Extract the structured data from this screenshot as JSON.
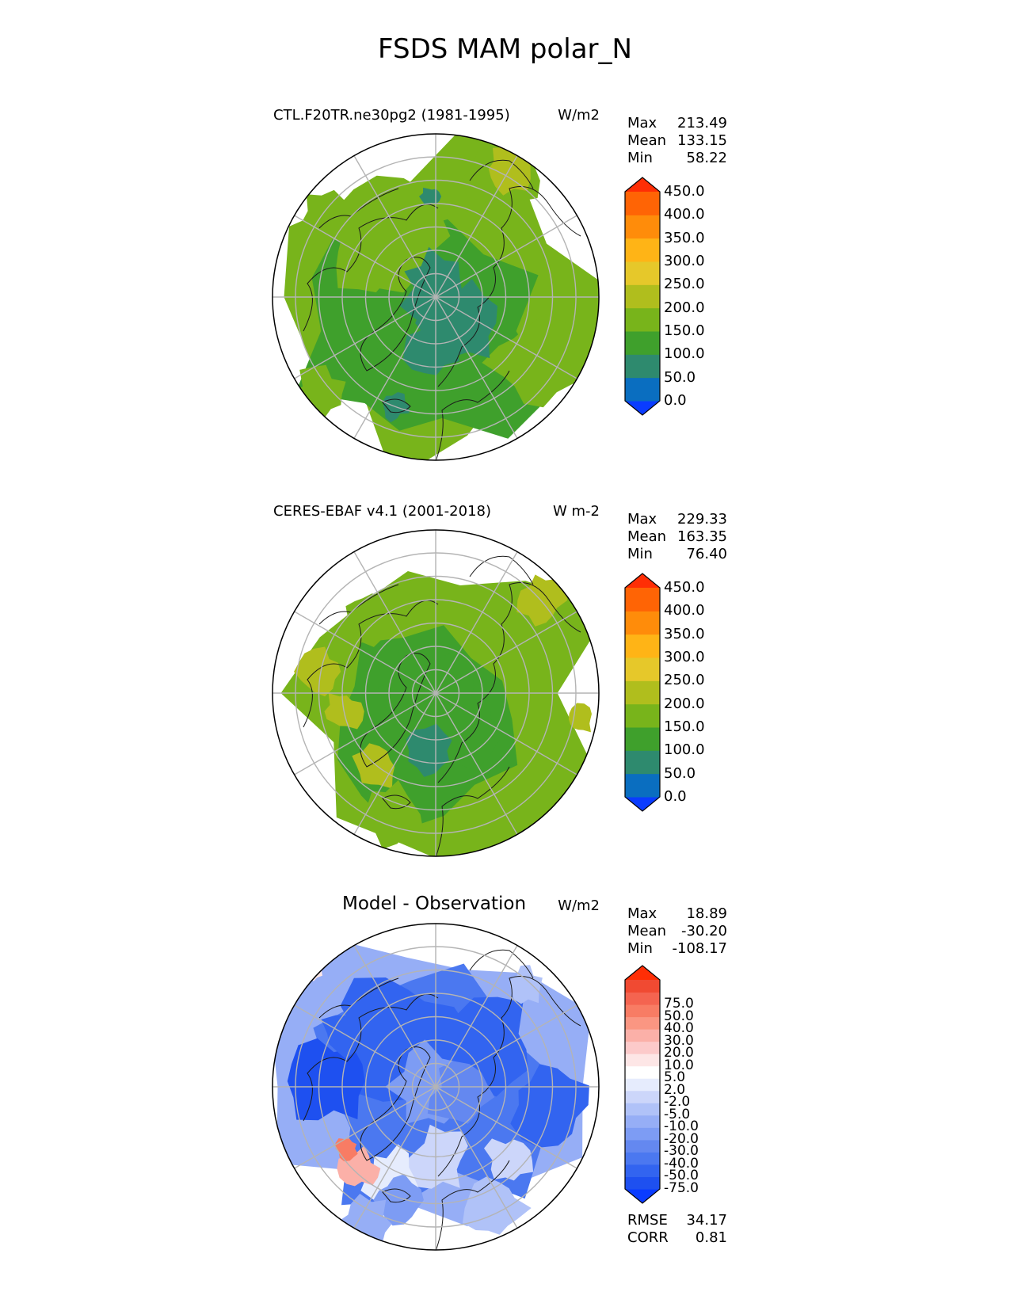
{
  "title": "FSDS MAM polar_N",
  "colors": {
    "seq": [
      "#0a3cff",
      "#0a6ec0",
      "#2e8a6e",
      "#3fa02c",
      "#78b41b",
      "#b0be1d",
      "#e6c82a",
      "#ffb416",
      "#ff8c0a",
      "#ff6405",
      "#ff2e05"
    ],
    "diff": [
      "#0a3cff",
      "#1e50f0",
      "#3264f0",
      "#4b78f0",
      "#6488f0",
      "#7d9cf4",
      "#96aef6",
      "#b0c2f8",
      "#ccd6fa",
      "#e6ecfd",
      "#ffffff",
      "#fde6e6",
      "#fccaca",
      "#fbb0a8",
      "#fa9682",
      "#f87c64",
      "#f46450",
      "#f04a32",
      "#ff2e05"
    ],
    "land_line": "#1a1a1a",
    "grid_line": "#b4b4b4"
  },
  "panels": [
    {
      "id": "model",
      "title": "CTL.F20TR.ne30pg2 (1981-1995)",
      "units": "W/m2",
      "stats": [
        {
          "label": "Max",
          "value": "213.49"
        },
        {
          "label": "Mean",
          "value": "133.15"
        },
        {
          "label": "Min",
          "value": "58.22"
        }
      ],
      "colorbar": {
        "ticks": [
          "450.0",
          "400.0",
          "350.0",
          "300.0",
          "250.0",
          "200.0",
          "150.0",
          "100.0",
          "50.0",
          "0.0"
        ]
      }
    },
    {
      "id": "obs",
      "title": "CERES-EBAF v4.1 (2001-2018)",
      "units": "W m-2",
      "stats": [
        {
          "label": "Max",
          "value": "229.33"
        },
        {
          "label": "Mean",
          "value": "163.35"
        },
        {
          "label": "Min",
          "value": "76.40"
        }
      ],
      "colorbar": {
        "ticks": [
          "450.0",
          "400.0",
          "350.0",
          "300.0",
          "250.0",
          "200.0",
          "150.0",
          "100.0",
          "50.0",
          "0.0"
        ]
      }
    },
    {
      "id": "diff",
      "title": "Model - Observation",
      "units": "W/m2",
      "stats": [
        {
          "label": "Max",
          "value": "18.89"
        },
        {
          "label": "Mean",
          "value": "-30.20"
        },
        {
          "label": "Min",
          "value": "-108.17"
        }
      ],
      "colorbar": {
        "ticks": [
          "75.0",
          "50.0",
          "40.0",
          "30.0",
          "20.0",
          "10.0",
          "5.0",
          "2.0",
          "-2.0",
          "-5.0",
          "-10.0",
          "-20.0",
          "-30.0",
          "-40.0",
          "-50.0",
          "-75.0"
        ]
      },
      "metrics": [
        {
          "label": "RMSE",
          "value": "34.17"
        },
        {
          "label": "CORR",
          "value": "0.81"
        }
      ]
    }
  ],
  "chart_data": [
    {
      "type": "heatmap",
      "projection": "north polar stereographic",
      "title": "CTL.F20TR.ne30pg2 (1981-1995)",
      "units": "W/m2",
      "stats": {
        "max": 213.49,
        "mean": 133.15,
        "min": 58.22
      },
      "levels": [
        0,
        50,
        100,
        150,
        200,
        250,
        300,
        350,
        400,
        450
      ],
      "colorbar_extend": "both"
    },
    {
      "type": "heatmap",
      "projection": "north polar stereographic",
      "title": "CERES-EBAF v4.1 (2001-2018)",
      "units": "W m-2",
      "stats": {
        "max": 229.33,
        "mean": 163.35,
        "min": 76.4
      },
      "levels": [
        0,
        50,
        100,
        150,
        200,
        250,
        300,
        350,
        400,
        450
      ],
      "colorbar_extend": "both"
    },
    {
      "type": "heatmap",
      "projection": "north polar stereographic",
      "title": "Model - Observation",
      "units": "W/m2",
      "stats": {
        "max": 18.89,
        "mean": -30.2,
        "min": -108.17,
        "rmse": 34.17,
        "corr": 0.81
      },
      "levels": [
        -75,
        -50,
        -40,
        -30,
        -20,
        -10,
        -5,
        -2,
        2,
        5,
        10,
        20,
        30,
        40,
        50,
        75
      ],
      "colorbar_extend": "both"
    }
  ]
}
